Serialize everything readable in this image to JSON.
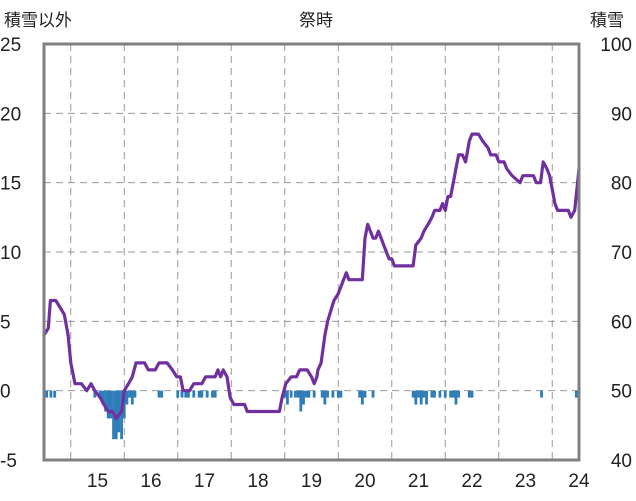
{
  "chart_data": {
    "type": "line",
    "title": "祭時",
    "left_axis_label": "積雪以外",
    "right_axis_label": "積雪",
    "y_left": {
      "min": -5,
      "max": 25,
      "ticks": [
        -5,
        0,
        5,
        10,
        15,
        20,
        25
      ]
    },
    "y_right": {
      "min": 40,
      "max": 100,
      "ticks": [
        40,
        50,
        60,
        70,
        80,
        90,
        100
      ]
    },
    "x_range": [
      14.5,
      24.5
    ],
    "x_ticks": [
      15,
      16,
      17,
      18,
      19,
      20,
      21,
      22,
      23,
      24
    ],
    "grid": {
      "vertical": "dashed",
      "horizontal": "dashed"
    },
    "colors": {
      "line": "#7030A0",
      "bars": "#2E7DB8",
      "frame": "#808080",
      "grid": "#999999"
    },
    "series": [
      {
        "axis": "left",
        "kind": "line",
        "points": [
          [
            14.5,
            4
          ],
          [
            14.58,
            4.5
          ],
          [
            14.62,
            6.5
          ],
          [
            14.72,
            6.5
          ],
          [
            14.8,
            6
          ],
          [
            14.88,
            5.5
          ],
          [
            14.95,
            4
          ],
          [
            15.0,
            2
          ],
          [
            15.08,
            0.5
          ],
          [
            15.2,
            0.5
          ],
          [
            15.3,
            0
          ],
          [
            15.38,
            0.5
          ],
          [
            15.45,
            0
          ],
          [
            15.55,
            -0.5
          ],
          [
            15.62,
            -1
          ],
          [
            15.7,
            -1.5
          ],
          [
            15.78,
            -1.5
          ],
          [
            15.85,
            -2
          ],
          [
            15.95,
            -1.5
          ],
          [
            16.0,
            0
          ],
          [
            16.08,
            0.5
          ],
          [
            16.15,
            1
          ],
          [
            16.22,
            2
          ],
          [
            16.38,
            2
          ],
          [
            16.45,
            1.5
          ],
          [
            16.58,
            1.5
          ],
          [
            16.65,
            2
          ],
          [
            16.8,
            2
          ],
          [
            16.9,
            1.5
          ],
          [
            16.98,
            1
          ],
          [
            17.05,
            1
          ],
          [
            17.1,
            0
          ],
          [
            17.22,
            0
          ],
          [
            17.3,
            0.5
          ],
          [
            17.45,
            0.5
          ],
          [
            17.52,
            1
          ],
          [
            17.7,
            1
          ],
          [
            17.75,
            1.5
          ],
          [
            17.8,
            1
          ],
          [
            17.85,
            1.5
          ],
          [
            17.92,
            1
          ],
          [
            17.98,
            -0.5
          ],
          [
            18.05,
            -1
          ],
          [
            18.25,
            -1
          ],
          [
            18.3,
            -1.5
          ],
          [
            18.9,
            -1.5
          ],
          [
            18.95,
            -0.5
          ],
          [
            19.02,
            0.5
          ],
          [
            19.12,
            1
          ],
          [
            19.22,
            1
          ],
          [
            19.28,
            1.5
          ],
          [
            19.42,
            1.5
          ],
          [
            19.5,
            1
          ],
          [
            19.55,
            0.5
          ],
          [
            19.6,
            1
          ],
          [
            19.62,
            1.5
          ],
          [
            19.68,
            2
          ],
          [
            19.75,
            4
          ],
          [
            19.8,
            5
          ],
          [
            19.88,
            6
          ],
          [
            19.92,
            6.5
          ],
          [
            20.0,
            7
          ],
          [
            20.05,
            7.5
          ],
          [
            20.1,
            8
          ],
          [
            20.15,
            8.5
          ],
          [
            20.2,
            8
          ],
          [
            20.45,
            8
          ],
          [
            20.5,
            11
          ],
          [
            20.55,
            12
          ],
          [
            20.6,
            11.5
          ],
          [
            20.65,
            11
          ],
          [
            20.7,
            11
          ],
          [
            20.75,
            11.5
          ],
          [
            20.8,
            11
          ],
          [
            20.85,
            10.5
          ],
          [
            20.9,
            10
          ],
          [
            20.95,
            9.5
          ],
          [
            21.0,
            9.5
          ],
          [
            21.05,
            9
          ],
          [
            21.4,
            9
          ],
          [
            21.45,
            10.5
          ],
          [
            21.55,
            11
          ],
          [
            21.6,
            11.5
          ],
          [
            21.68,
            12
          ],
          [
            21.75,
            12.5
          ],
          [
            21.8,
            13
          ],
          [
            21.9,
            13
          ],
          [
            21.95,
            13.5
          ],
          [
            22.0,
            13
          ],
          [
            22.05,
            14
          ],
          [
            22.1,
            14
          ],
          [
            22.15,
            15
          ],
          [
            22.2,
            16
          ],
          [
            22.25,
            17
          ],
          [
            22.32,
            17
          ],
          [
            22.38,
            16.5
          ],
          [
            22.45,
            18
          ],
          [
            22.5,
            18.5
          ],
          [
            22.62,
            18.5
          ],
          [
            22.7,
            18
          ],
          [
            22.8,
            17.5
          ],
          [
            22.85,
            17
          ],
          [
            22.95,
            17
          ],
          [
            23.0,
            16.5
          ],
          [
            23.1,
            16.5
          ],
          [
            23.15,
            16
          ],
          [
            23.25,
            15.5
          ],
          [
            23.4,
            15
          ],
          [
            23.45,
            15.5
          ],
          [
            23.65,
            15.5
          ],
          [
            23.7,
            15
          ],
          [
            23.78,
            15
          ],
          [
            23.83,
            16.5
          ],
          [
            23.9,
            16
          ],
          [
            23.95,
            15.5
          ],
          [
            24.0,
            14.5
          ],
          [
            24.05,
            13.5
          ],
          [
            24.1,
            13
          ],
          [
            24.3,
            13
          ],
          [
            24.35,
            12.5
          ],
          [
            24.42,
            13
          ],
          [
            24.5,
            16
          ]
        ]
      },
      {
        "axis": "left",
        "kind": "bar",
        "points": [
          [
            14.55,
            -0.5
          ],
          [
            14.63,
            -0.5
          ],
          [
            14.7,
            -0.5
          ],
          [
            15.45,
            -0.5
          ],
          [
            15.55,
            -0.5
          ],
          [
            15.6,
            -1
          ],
          [
            15.65,
            -1.5
          ],
          [
            15.7,
            -2
          ],
          [
            15.75,
            -2
          ],
          [
            15.8,
            -3.5
          ],
          [
            15.85,
            -3.5
          ],
          [
            15.9,
            -3
          ],
          [
            15.95,
            -3.5
          ],
          [
            16.0,
            -2
          ],
          [
            16.05,
            -1
          ],
          [
            16.1,
            -0.5
          ],
          [
            16.15,
            -1
          ],
          [
            16.2,
            -0.5
          ],
          [
            16.65,
            -0.5
          ],
          [
            16.7,
            -0.5
          ],
          [
            17.0,
            -0.5
          ],
          [
            17.08,
            -0.5
          ],
          [
            17.15,
            -0.5
          ],
          [
            17.2,
            -0.5
          ],
          [
            17.3,
            -0.5
          ],
          [
            17.4,
            -0.5
          ],
          [
            17.45,
            -0.5
          ],
          [
            17.55,
            -0.5
          ],
          [
            17.65,
            -0.5
          ],
          [
            17.7,
            -0.5
          ],
          [
            19.0,
            -0.5
          ],
          [
            19.05,
            -1
          ],
          [
            19.12,
            -0.5
          ],
          [
            19.2,
            -0.5
          ],
          [
            19.25,
            -0.5
          ],
          [
            19.3,
            -1.5
          ],
          [
            19.35,
            -1
          ],
          [
            19.4,
            -0.5
          ],
          [
            19.45,
            -0.5
          ],
          [
            19.55,
            -0.5
          ],
          [
            19.7,
            -0.5
          ],
          [
            19.75,
            -1
          ],
          [
            19.8,
            -0.5
          ],
          [
            19.9,
            -0.5
          ],
          [
            20.0,
            -0.5
          ],
          [
            20.05,
            -0.5
          ],
          [
            20.4,
            -0.5
          ],
          [
            20.45,
            -1
          ],
          [
            20.5,
            -0.5
          ],
          [
            20.65,
            -0.5
          ],
          [
            21.4,
            -0.5
          ],
          [
            21.45,
            -1
          ],
          [
            21.5,
            -0.5
          ],
          [
            21.55,
            -1
          ],
          [
            21.6,
            -0.5
          ],
          [
            21.65,
            -1
          ],
          [
            21.75,
            -0.5
          ],
          [
            21.8,
            -0.5
          ],
          [
            21.9,
            -0.5
          ],
          [
            22.0,
            -0.5
          ],
          [
            22.1,
            -0.5
          ],
          [
            22.15,
            -0.5
          ],
          [
            22.2,
            -1
          ],
          [
            22.25,
            -0.5
          ],
          [
            22.45,
            -0.5
          ],
          [
            22.5,
            -0.5
          ],
          [
            23.8,
            -0.5
          ],
          [
            24.45,
            -0.5
          ],
          [
            24.5,
            -1
          ]
        ]
      }
    ]
  }
}
